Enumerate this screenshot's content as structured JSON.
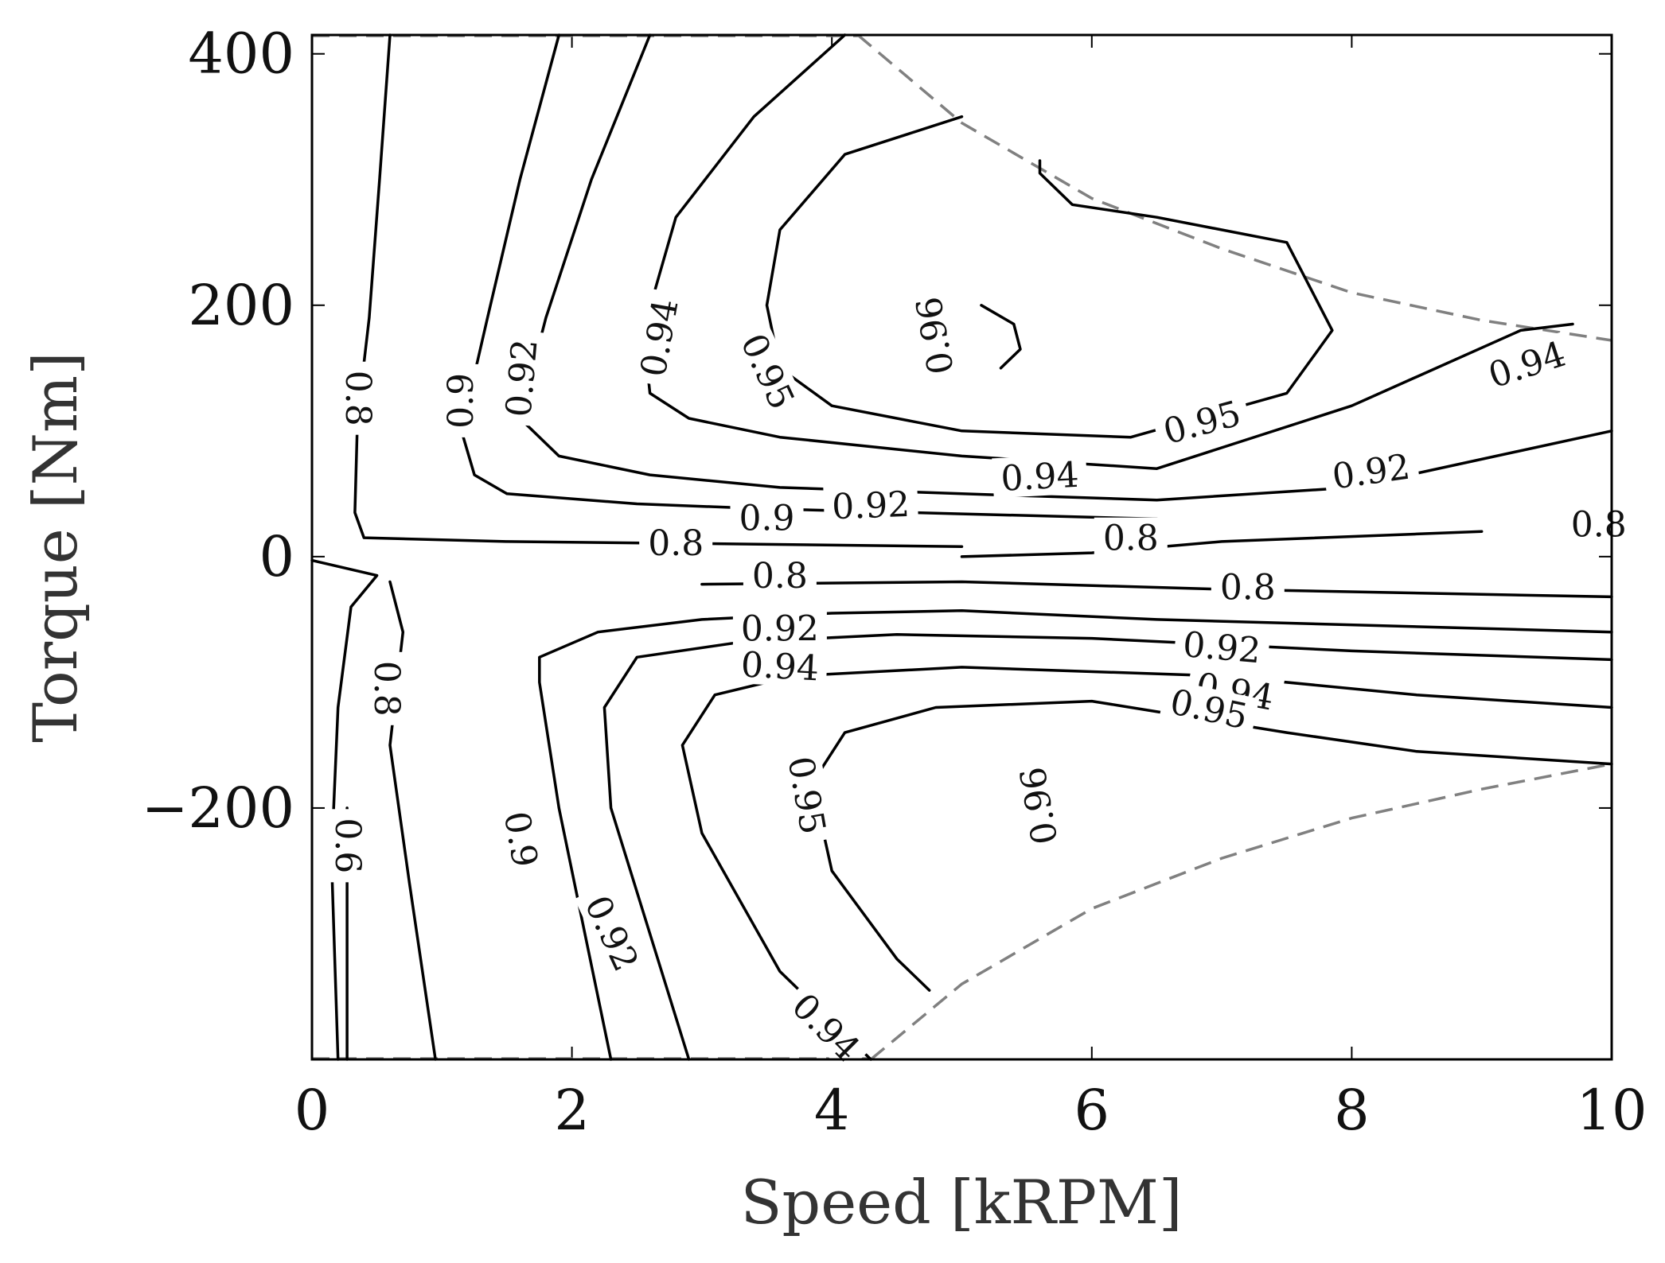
{
  "chart_data": {
    "type": "contour",
    "xlabel": "Speed [kRPM]",
    "ylabel": "Torque [Nm]",
    "xlim": [
      0,
      10
    ],
    "ylim": [
      -400,
      415
    ],
    "xticks": [
      0,
      2,
      4,
      6,
      8,
      10
    ],
    "yticks": [
      -200,
      0,
      200,
      400
    ],
    "xtick_labels": [
      "0",
      "2",
      "4",
      "6",
      "8",
      "10"
    ],
    "ytick_labels": [
      "−200",
      "0",
      "200",
      "400"
    ],
    "levels": [
      "0.6",
      "0.8",
      "0.9",
      "0.92",
      "0.94",
      "0.95",
      "0.96"
    ],
    "envelope": {
      "description": "maximum torque limit (dashed gray)",
      "upper": [
        [
          4.2,
          415
        ],
        [
          5.0,
          345
        ],
        [
          6.0,
          285
        ],
        [
          7.0,
          245
        ],
        [
          8.0,
          210
        ],
        [
          9.0,
          188
        ],
        [
          10.0,
          172
        ]
      ],
      "lower": [
        [
          4.3,
          -400
        ],
        [
          5.0,
          -340
        ],
        [
          6.0,
          -280
        ],
        [
          7.0,
          -240
        ],
        [
          8.0,
          -208
        ],
        [
          9.0,
          -185
        ],
        [
          10.0,
          -165
        ]
      ]
    },
    "contours": [
      {
        "level": "0.8",
        "points": [
          [
            0.6,
            415
          ],
          [
            0.52,
            300
          ],
          [
            0.44,
            190
          ],
          [
            0.35,
            110
          ],
          [
            0.33,
            35
          ],
          [
            0.4,
            15
          ],
          [
            1.5,
            12
          ],
          [
            3.3,
            10
          ],
          [
            5.0,
            8
          ]
        ]
      },
      {
        "level": "0.9",
        "points": [
          [
            1.9,
            415
          ],
          [
            1.6,
            300
          ],
          [
            1.35,
            190
          ],
          [
            1.15,
            100
          ],
          [
            1.25,
            65
          ],
          [
            1.5,
            50
          ],
          [
            2.5,
            42
          ],
          [
            3.5,
            38
          ],
          [
            5.0,
            34
          ],
          [
            6.5,
            30
          ]
        ]
      },
      {
        "level": "0.92",
        "points": [
          [
            2.6,
            415
          ],
          [
            2.15,
            300
          ],
          [
            1.8,
            190
          ],
          [
            1.6,
            110
          ],
          [
            1.9,
            80
          ],
          [
            2.6,
            65
          ],
          [
            3.6,
            55
          ],
          [
            5.0,
            50
          ],
          [
            6.5,
            45
          ],
          [
            8.0,
            55
          ],
          [
            10.0,
            100
          ]
        ]
      },
      {
        "level": "0.94",
        "points": [
          [
            4.1,
            415
          ],
          [
            3.4,
            350
          ],
          [
            2.8,
            270
          ],
          [
            2.55,
            180
          ],
          [
            2.6,
            130
          ],
          [
            2.9,
            110
          ],
          [
            3.6,
            95
          ],
          [
            5.0,
            80
          ],
          [
            6.5,
            70
          ],
          [
            8.0,
            120
          ],
          [
            9.3,
            180
          ],
          [
            9.7,
            185
          ]
        ]
      },
      {
        "level": "0.95",
        "points": [
          [
            5.0,
            350
          ],
          [
            4.1,
            320
          ],
          [
            3.6,
            260
          ],
          [
            3.5,
            200
          ],
          [
            3.6,
            150
          ],
          [
            4.0,
            120
          ],
          [
            5.0,
            100
          ],
          [
            6.3,
            95
          ],
          [
            7.5,
            130
          ],
          [
            7.85,
            180
          ],
          [
            7.5,
            250
          ],
          [
            6.5,
            270
          ],
          [
            5.85,
            280
          ],
          [
            5.6,
            305
          ],
          [
            5.6,
            315
          ]
        ]
      },
      {
        "level": "0.96",
        "points": [
          [
            5.3,
            150
          ],
          [
            5.45,
            165
          ],
          [
            5.4,
            185
          ],
          [
            5.15,
            200
          ]
        ]
      },
      {
        "level": "0.8",
        "points": [
          [
            0.0,
            -3
          ],
          [
            0.5,
            -15
          ],
          [
            0.3,
            -40
          ],
          [
            0.2,
            -120
          ],
          [
            0.15,
            -240
          ],
          [
            0.2,
            -400
          ]
        ]
      },
      {
        "level": "0.8",
        "points": [
          [
            0.6,
            -20
          ],
          [
            0.7,
            -60
          ],
          [
            0.6,
            -150
          ],
          [
            0.75,
            -260
          ],
          [
            0.95,
            -400
          ]
        ]
      },
      {
        "level": "0.8",
        "points": [
          [
            3.0,
            -22
          ],
          [
            5.0,
            -20
          ],
          [
            7.0,
            -26
          ],
          [
            10.0,
            -32
          ]
        ]
      },
      {
        "level": "0.9",
        "points": [
          [
            2.3,
            -400
          ],
          [
            2.1,
            -300
          ],
          [
            1.9,
            -200
          ],
          [
            1.75,
            -100
          ],
          [
            1.75,
            -80
          ],
          [
            2.2,
            -60
          ],
          [
            3.0,
            -50
          ],
          [
            4.0,
            -45
          ],
          [
            5.0,
            -43
          ],
          [
            6.5,
            -50
          ],
          [
            10.0,
            -60
          ]
        ]
      },
      {
        "level": "0.92",
        "points": [
          [
            2.9,
            -400
          ],
          [
            2.6,
            -300
          ],
          [
            2.3,
            -200
          ],
          [
            2.25,
            -120
          ],
          [
            2.5,
            -80
          ],
          [
            3.3,
            -68
          ],
          [
            4.5,
            -62
          ],
          [
            6.0,
            -65
          ],
          [
            8.0,
            -75
          ],
          [
            10.0,
            -82
          ]
        ]
      },
      {
        "level": "0.94",
        "points": [
          [
            4.3,
            -400
          ],
          [
            3.6,
            -330
          ],
          [
            3.0,
            -220
          ],
          [
            2.85,
            -150
          ],
          [
            3.1,
            -110
          ],
          [
            3.7,
            -95
          ],
          [
            5.0,
            -88
          ],
          [
            7.0,
            -95
          ],
          [
            8.5,
            -110
          ],
          [
            10.0,
            -120
          ]
        ]
      },
      {
        "level": "0.95",
        "points": [
          [
            4.75,
            -345
          ],
          [
            4.5,
            -320
          ],
          [
            4.0,
            -250
          ],
          [
            3.85,
            -180
          ],
          [
            4.1,
            -140
          ],
          [
            4.8,
            -120
          ],
          [
            6.0,
            -115
          ],
          [
            7.5,
            -140
          ],
          [
            8.5,
            -155
          ],
          [
            10.0,
            -165
          ]
        ]
      },
      {
        "level": "0.96",
        "points": [
          [
            5.5,
            -195
          ],
          [
            5.65,
            -205
          ]
        ]
      },
      {
        "level": "0.6",
        "points": [
          [
            0.27,
            -400
          ],
          [
            0.27,
            -200
          ]
        ]
      },
      {
        "level": "0.8",
        "points": [
          [
            5.0,
            0
          ],
          [
            6.0,
            3
          ],
          [
            7.0,
            12
          ],
          [
            8.5,
            18
          ],
          [
            9.0,
            20
          ]
        ]
      }
    ]
  },
  "contour_labels": [
    {
      "text": "0.8",
      "x": 0.35,
      "y": 126,
      "angle": 90
    },
    {
      "text": "0.9",
      "x": 1.15,
      "y": 124,
      "angle": -90
    },
    {
      "text": "0.92",
      "x": 1.62,
      "y": 142,
      "angle": -85
    },
    {
      "text": "0.94",
      "x": 2.68,
      "y": 174,
      "angle": -80
    },
    {
      "text": "0.95",
      "x": 3.5,
      "y": 147,
      "angle": 65
    },
    {
      "text": "0.96",
      "x": 4.8,
      "y": 176,
      "angle": -100
    },
    {
      "text": "0.94",
      "x": 9.35,
      "y": 152,
      "angle": -18
    },
    {
      "text": "0.95",
      "x": 6.85,
      "y": 106,
      "angle": -15
    },
    {
      "text": "0.94",
      "x": 5.6,
      "y": 63,
      "angle": -3
    },
    {
      "text": "0.92",
      "x": 8.15,
      "y": 67,
      "angle": -8
    },
    {
      "text": "0.92",
      "x": 4.3,
      "y": 40,
      "angle": -2
    },
    {
      "text": "0.9",
      "x": 3.5,
      "y": 30,
      "angle": 0
    },
    {
      "text": "0.8",
      "x": 2.8,
      "y": 10,
      "angle": 0
    },
    {
      "text": "0.8",
      "x": 6.3,
      "y": 14,
      "angle": 0
    },
    {
      "text": "0.8",
      "x": 9.9,
      "y": 25,
      "angle": 0
    },
    {
      "text": "0.8",
      "x": 3.6,
      "y": -16,
      "angle": 0
    },
    {
      "text": "0.8",
      "x": 7.2,
      "y": -25,
      "angle": 0
    },
    {
      "text": "0.92",
      "x": 3.6,
      "y": -58,
      "angle": 0
    },
    {
      "text": "0.92",
      "x": 7.0,
      "y": -73,
      "angle": 5
    },
    {
      "text": "0.94",
      "x": 3.6,
      "y": -88,
      "angle": 3
    },
    {
      "text": "0.94",
      "x": 7.1,
      "y": -108,
      "angle": 10
    },
    {
      "text": "0.95",
      "x": 6.9,
      "y": -122,
      "angle": 12
    },
    {
      "text": "0.95",
      "x": 3.8,
      "y": -190,
      "angle": 80
    },
    {
      "text": "0.96",
      "x": 5.6,
      "y": -198,
      "angle": -100
    },
    {
      "text": "0.9",
      "x": 1.6,
      "y": -225,
      "angle": 80
    },
    {
      "text": "0.92",
      "x": 2.3,
      "y": -300,
      "angle": 65
    },
    {
      "text": "0.94",
      "x": 3.95,
      "y": -375,
      "angle": 45
    },
    {
      "text": "0.8",
      "x": 0.57,
      "y": -105,
      "angle": 90
    },
    {
      "text": "0.6",
      "x": 0.27,
      "y": -230,
      "angle": 90
    }
  ]
}
